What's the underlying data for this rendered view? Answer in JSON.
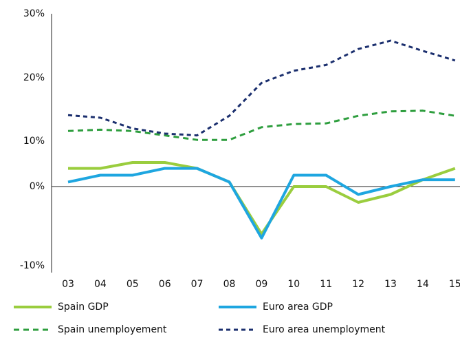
{
  "chart_data": {
    "type": "line",
    "categories": [
      "03",
      "04",
      "05",
      "06",
      "07",
      "08",
      "09",
      "10",
      "11",
      "12",
      "13",
      "14",
      "15"
    ],
    "series": [
      {
        "name": "Spain GDP",
        "color": "#9acd3e",
        "dash": false,
        "values": [
          4,
          4,
          5.3,
          5.3,
          4,
          1,
          -6,
          0,
          0,
          -2,
          -1,
          1.5,
          4
        ]
      },
      {
        "name": "Euro area GDP",
        "color": "#1ea6e0",
        "dash": false,
        "values": [
          1,
          2.5,
          2.5,
          4,
          4,
          1,
          -6.5,
          2.5,
          2.5,
          -1,
          0,
          1.5,
          1.5
        ]
      },
      {
        "name": "Spain unemployement",
        "color": "#2e9e3e",
        "dash": true,
        "values": [
          11.6,
          11.8,
          11.6,
          10.9,
          10.2,
          10.2,
          12.2,
          12.7,
          12.8,
          14,
          14.7,
          14.8,
          14
        ]
      },
      {
        "name": "Euro area unemployment",
        "color": "#1b2f6e",
        "dash": true,
        "values": [
          14.1,
          13.7,
          12,
          11.2,
          10.9,
          14,
          19.2,
          21.1,
          22,
          24.5,
          25.8,
          24.2,
          22.7
        ]
      }
    ],
    "ylim": [
      -10,
      30
    ],
    "yticks": [
      {
        "value": -10,
        "label": "-10%"
      },
      {
        "value": 0,
        "label": "0%"
      },
      {
        "value": 10,
        "label": "10%"
      },
      {
        "value": 20,
        "label": "20%"
      },
      {
        "value": 30,
        "label": "30%"
      }
    ]
  }
}
